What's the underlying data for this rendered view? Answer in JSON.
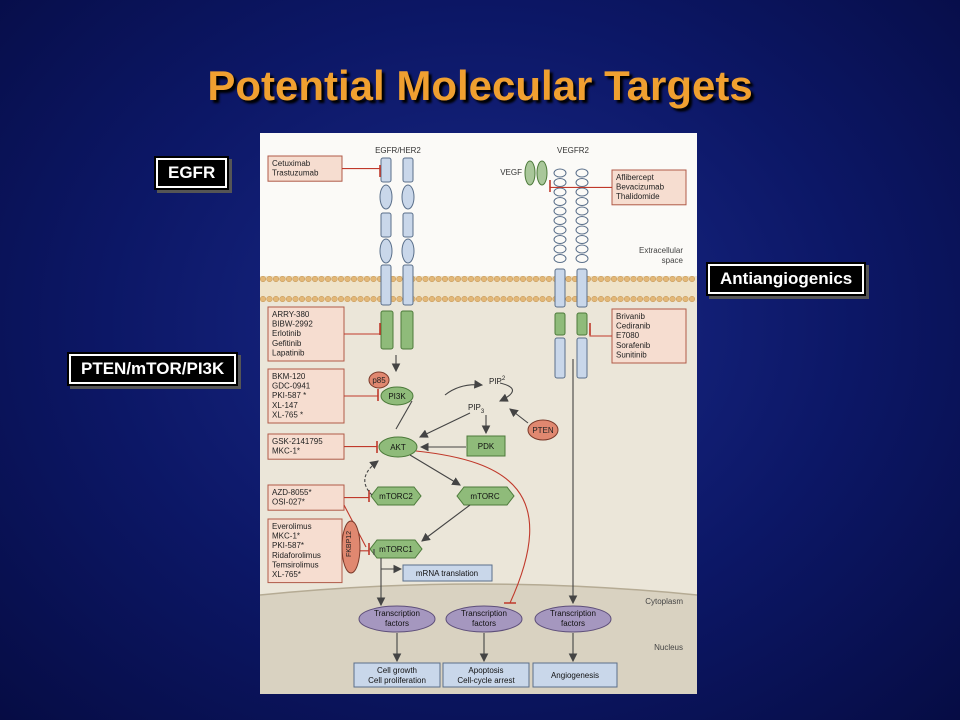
{
  "slide": {
    "title": "Potential Molecular Targets",
    "labels": {
      "egfr": "EGFR",
      "antiangiogenics": "Antiangiogenics",
      "pten": "PTEN/mTOR/PI3K"
    }
  },
  "colors": {
    "title": "#f0a030",
    "inhibitor_line": "#c0392b",
    "drug_box_fill": "#f6ddd0",
    "background": "#0c1766"
  },
  "diagram": {
    "receptors": {
      "egfr": "EGFR/HER2",
      "vegfr": "VEGFR2",
      "ligand": "VEGF"
    },
    "extracellular": [
      "Extracellular",
      "space"
    ],
    "cytoplasm": "Cytoplasm",
    "nucleus": "Nucleus",
    "drug_groups": {
      "egfr_antibodies": [
        "Cetuximab",
        "Trastuzumab"
      ],
      "vegf_drugs": [
        "Aflibercept",
        "Bevacizumab",
        "Thalidomide"
      ],
      "egfr_tki": [
        "ARRY-380",
        "BIBW-2992",
        "Erlotinib",
        "Gefitinib",
        "Lapatinib"
      ],
      "vegfr_tki": [
        "Brivanib",
        "Cediranib",
        "E7080",
        "Sorafenib",
        "Sunitinib"
      ],
      "pi3k_inhibitors": [
        "BKM-120",
        "GDC-0941",
        "PKI-587 *",
        "XL-147",
        "XL-765 *"
      ],
      "akt_inhibitors": [
        "GSK-2141795",
        "MKC-1*"
      ],
      "mtorc_inhibitors": [
        "AZD-8055*",
        "OSI-027*"
      ],
      "mtorc1_inhibitors": [
        "Everolimus",
        "MKC-1*",
        "PKI-587*",
        "Ridaforolimus",
        "Temsirolimus",
        "XL-765*"
      ]
    },
    "nodes": {
      "p85": "p85",
      "pi3k": "PI3K",
      "pip2": "PIP",
      "pip2_sub": "2",
      "pip3": "PIP",
      "pip3_sub": "3",
      "pten": "PTEN",
      "akt": "AKT",
      "pdk": "PDK",
      "mtorc2": "mTORC2",
      "mtorc": "mTORC",
      "mtorc1": "mTORC1",
      "fkbp12": "FKBP12",
      "mrna": "mRNA translation"
    },
    "tf": [
      "Transcription",
      "factors"
    ],
    "outcomes": {
      "growth": [
        "Cell growth",
        "Cell proliferation"
      ],
      "apoptosis": [
        "Apoptosis",
        "Cell-cycle arrest"
      ],
      "angio": [
        "Angiogenesis"
      ]
    }
  }
}
